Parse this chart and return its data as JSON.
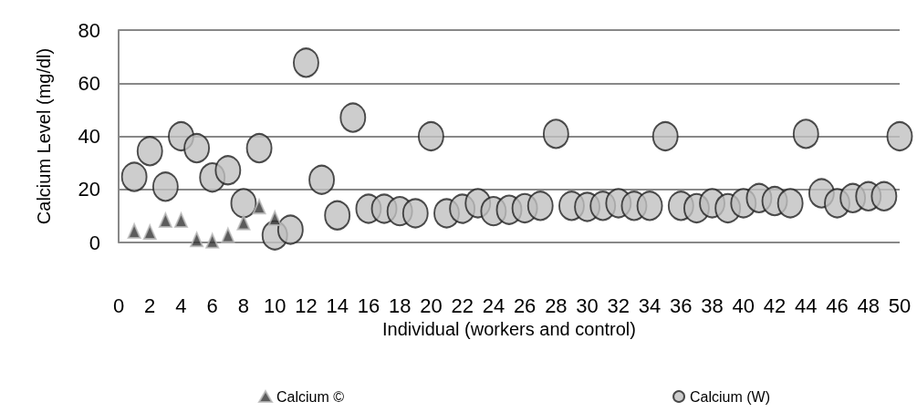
{
  "chart_data": {
    "type": "scatter",
    "xlabel": "Individual (workers and control)",
    "ylabel": "Calcium Level (mg/dl)",
    "xlim": [
      0,
      50
    ],
    "xticks": [
      0,
      2,
      4,
      6,
      8,
      10,
      12,
      14,
      16,
      18,
      20,
      22,
      24,
      26,
      28,
      30,
      32,
      34,
      36,
      38,
      40,
      42,
      44,
      46,
      48,
      50
    ],
    "ylim": [
      0,
      80
    ],
    "yticks": [
      0,
      20,
      40,
      60,
      80
    ],
    "grid": "y",
    "legend": "bottom",
    "series": [
      {
        "name": "Calcium ©",
        "color": "#333333",
        "marker": "triangle",
        "x": [
          1,
          2,
          3,
          4,
          5,
          6,
          7,
          8,
          9,
          10
        ],
        "values": [
          4.3,
          3.9,
          8.4,
          8.4,
          1.1,
          0.6,
          2.7,
          7.5,
          13.5,
          9.1
        ]
      },
      {
        "name": "Calcium (W)",
        "color": "#c0c0c0",
        "marker": "circle",
        "x": [
          1,
          2,
          3,
          4,
          5,
          6,
          7,
          8,
          9,
          10,
          11,
          12,
          13,
          14,
          15,
          16,
          17,
          18,
          19,
          20,
          21,
          22,
          23,
          24,
          25,
          26,
          27,
          28,
          29,
          30,
          31,
          32,
          33,
          34,
          35,
          36,
          37,
          38,
          39,
          40,
          41,
          42,
          43,
          44,
          45,
          46,
          47,
          48,
          49,
          50
        ],
        "values": [
          24.7,
          34.4,
          21,
          40,
          35.5,
          24.5,
          27.2,
          14.8,
          35.5,
          2.7,
          4.8,
          67.7,
          23.6,
          10.2,
          47,
          12.7,
          12.7,
          11.8,
          11,
          40,
          11,
          12.7,
          14.8,
          11.8,
          12.3,
          12.9,
          13.8,
          40.9,
          13.8,
          13.4,
          13.8,
          14.8,
          13.8,
          13.8,
          40,
          13.8,
          12.9,
          14.8,
          12.9,
          14.8,
          16.7,
          15.6,
          14.8,
          40.9,
          18.5,
          14.8,
          16.7,
          17.4,
          17.4,
          40
        ]
      }
    ]
  }
}
